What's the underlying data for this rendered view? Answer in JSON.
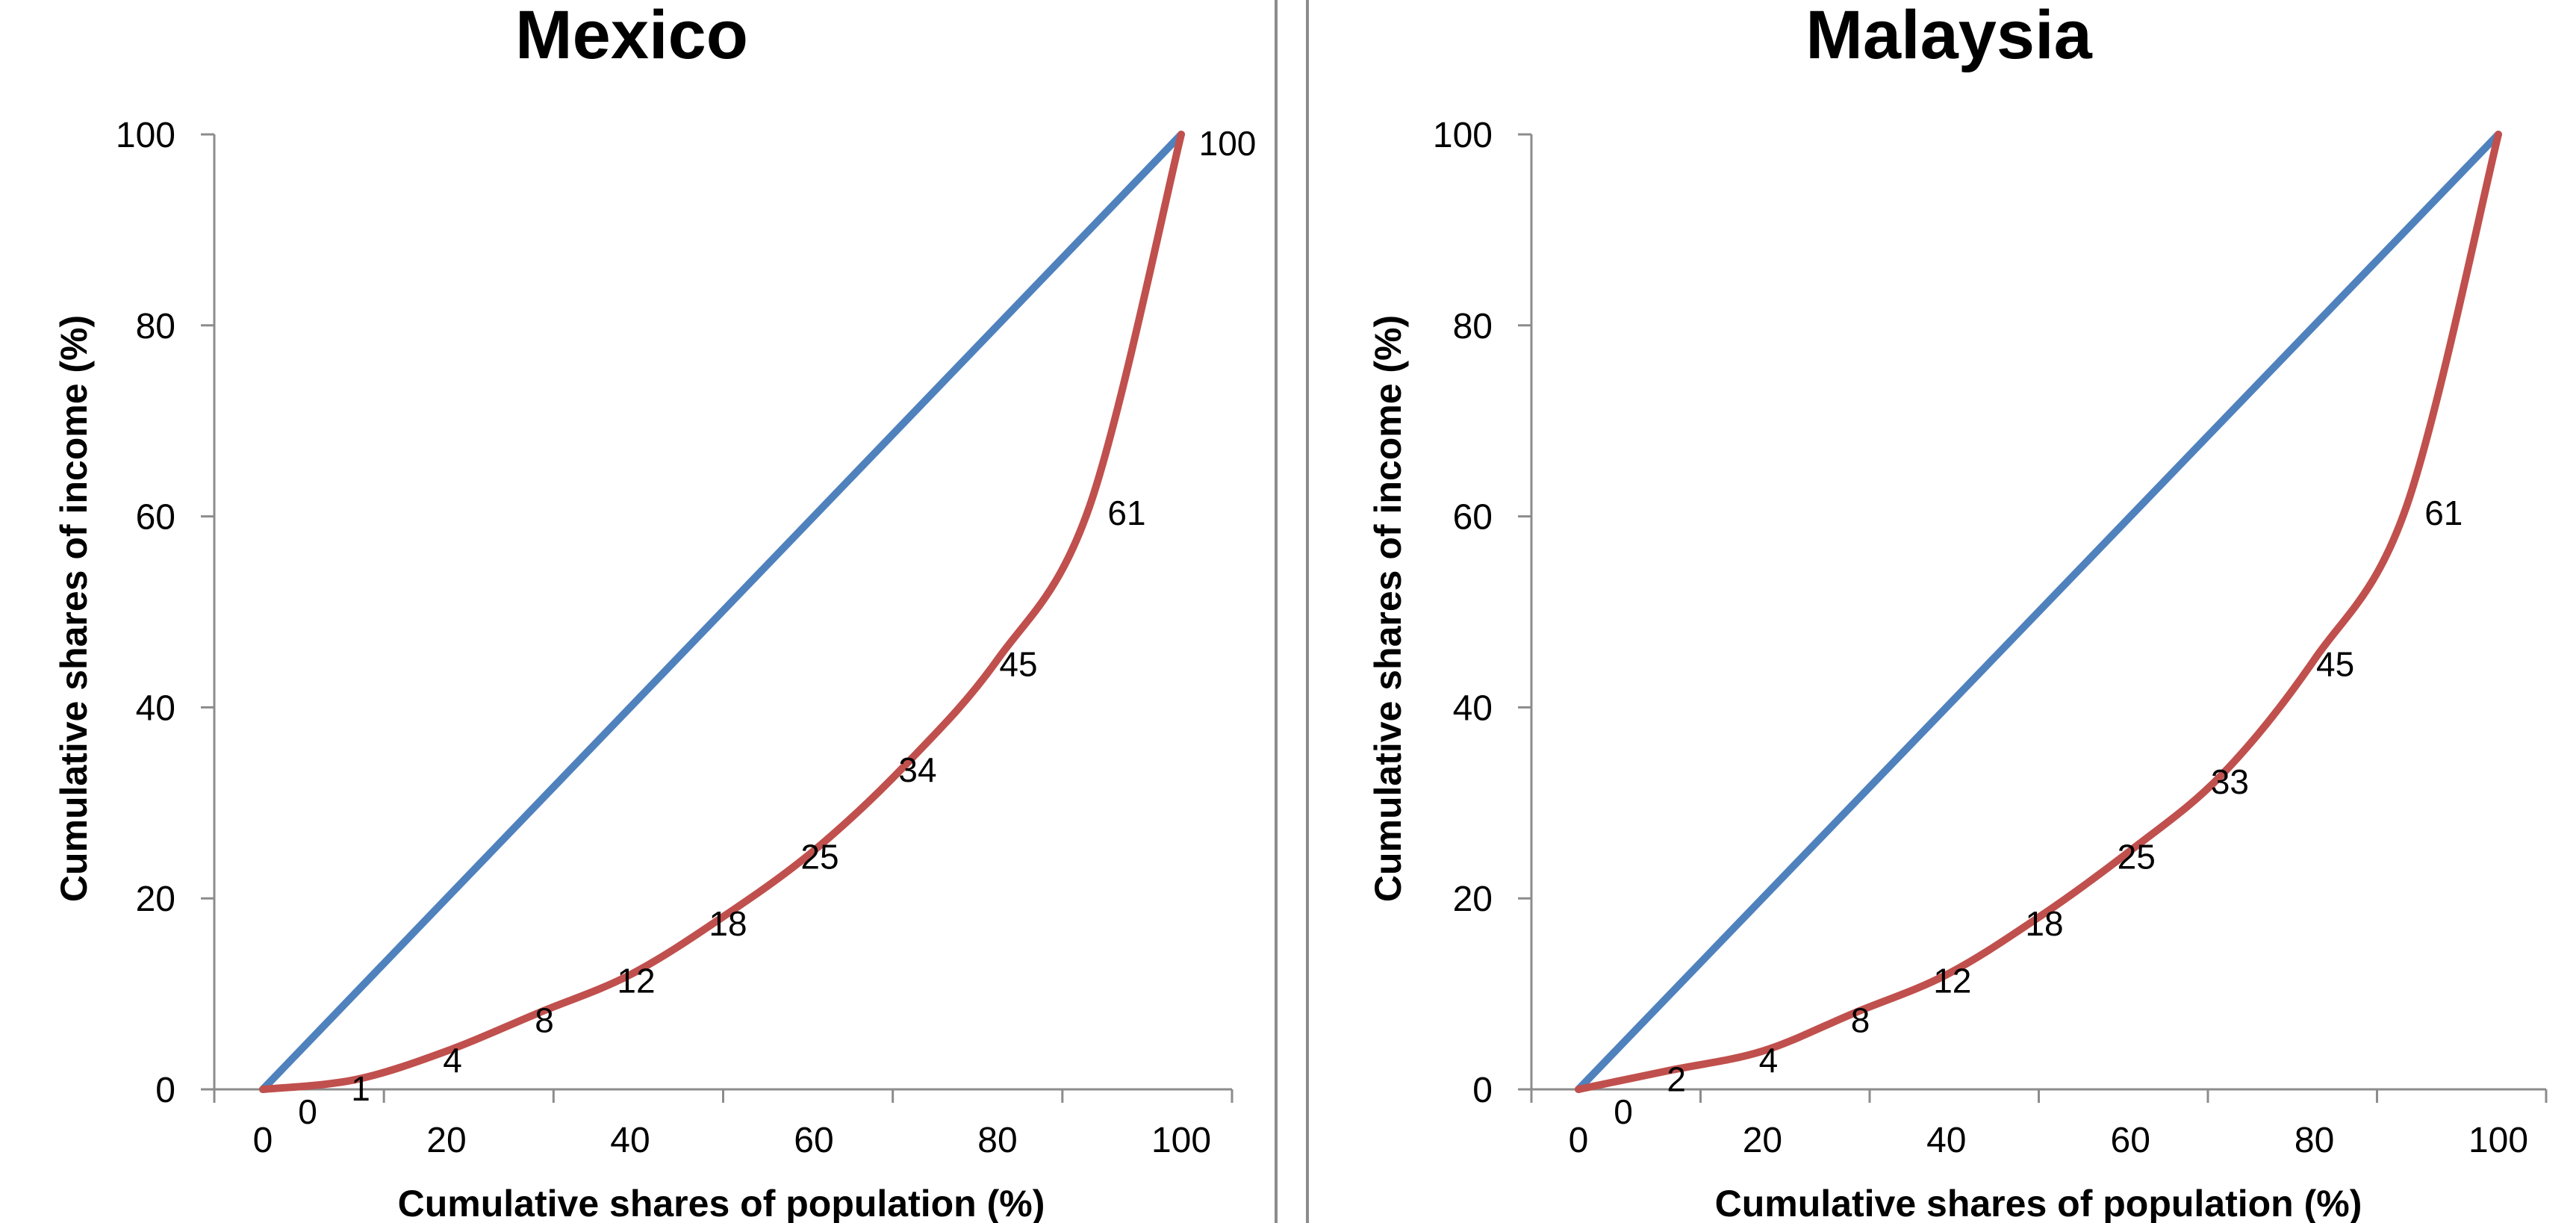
{
  "chart_data": [
    {
      "type": "line",
      "title": "Mexico",
      "xlabel": "Cumulative shares of population (%)",
      "ylabel": "Cumulative shares of income (%)",
      "xlim": [
        0,
        100
      ],
      "ylim": [
        0,
        100
      ],
      "x_ticks": [
        "0",
        "20",
        "40",
        "60",
        "80",
        "100"
      ],
      "y_ticks": [
        "0",
        "20",
        "40",
        "60",
        "80",
        "100"
      ],
      "grid": false,
      "colors": {
        "equality": "#4f81bd",
        "lorenz": "#c0504d"
      },
      "series": [
        {
          "x": [
            0,
            100
          ],
          "y": [
            0,
            100
          ]
        },
        {
          "x": [
            0,
            10,
            20,
            30,
            40,
            50,
            60,
            70,
            80,
            90,
            100
          ],
          "y": [
            0,
            1,
            4,
            8,
            12,
            18,
            25,
            34,
            45,
            61,
            100
          ]
        }
      ],
      "data_labels": [
        "0",
        "1",
        "4",
        "8",
        "12",
        "18",
        "25",
        "34",
        "45",
        "61",
        "100"
      ]
    },
    {
      "type": "line",
      "title": "Malaysia",
      "xlabel": "Cumulative shares of population (%)",
      "ylabel": "Cumulative shares of income (%)",
      "xlim": [
        0,
        100
      ],
      "ylim": [
        0,
        100
      ],
      "x_ticks": [
        "0",
        "20",
        "40",
        "60",
        "80",
        "100"
      ],
      "y_ticks": [
        "0",
        "20",
        "40",
        "60",
        "80",
        "100"
      ],
      "grid": false,
      "colors": {
        "equality": "#4f81bd",
        "lorenz": "#c0504d"
      },
      "series": [
        {
          "x": [
            0,
            100
          ],
          "y": [
            0,
            100
          ]
        },
        {
          "x": [
            0,
            10,
            20,
            30,
            40,
            50,
            60,
            70,
            80,
            90,
            100
          ],
          "y": [
            0,
            2,
            4,
            8,
            12,
            18,
            25,
            33,
            45,
            61,
            100
          ]
        }
      ],
      "data_labels": [
        "0",
        "2",
        "4",
        "8",
        "12",
        "18",
        "25",
        "33",
        "45",
        "61",
        ""
      ]
    }
  ]
}
